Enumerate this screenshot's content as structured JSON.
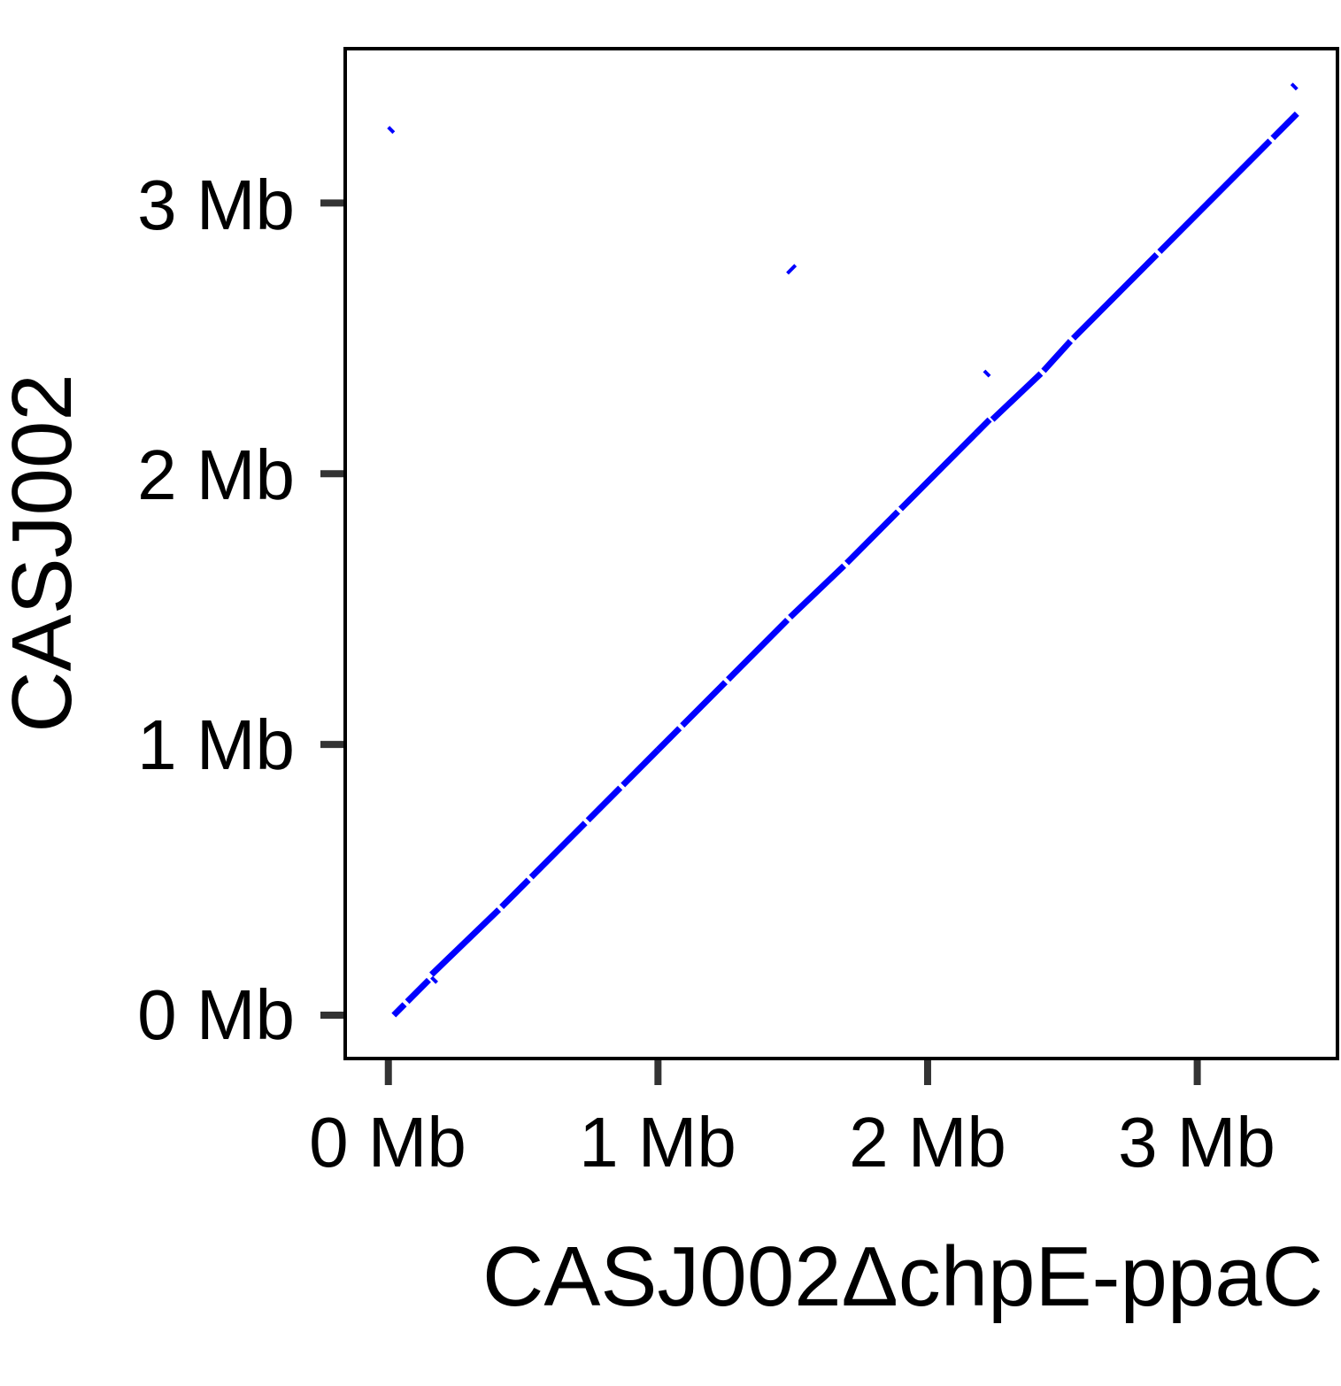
{
  "chart_data": {
    "type": "scatter",
    "subtype": "dot-plot",
    "xlabel": "CASJ002ΔchpE-ppaC",
    "ylabel": "CASJ002",
    "xlim": [
      -0.16,
      3.52
    ],
    "ylim": [
      -0.16,
      3.57
    ],
    "x_ticks": [
      {
        "value": 0,
        "label": "0 Mb"
      },
      {
        "value": 1,
        "label": "1 Mb"
      },
      {
        "value": 2,
        "label": "2 Mb"
      },
      {
        "value": 3,
        "label": "3 Mb"
      }
    ],
    "y_ticks": [
      {
        "value": 0,
        "label": "0 Mb"
      },
      {
        "value": 1,
        "label": "1 Mb"
      },
      {
        "value": 2,
        "label": "2 Mb"
      },
      {
        "value": 3,
        "label": "3 Mb"
      }
    ],
    "grid": false,
    "line_color": "#0000ff",
    "segments": [
      {
        "x1": 0.02,
        "y1": 0.0,
        "x2": 0.06,
        "y2": 0.04
      },
      {
        "x1": 0.07,
        "y1": 0.05,
        "x2": 0.15,
        "y2": 0.13
      },
      {
        "x1": 0.16,
        "y1": 0.15,
        "x2": 0.41,
        "y2": 0.39
      },
      {
        "x1": 0.42,
        "y1": 0.4,
        "x2": 0.52,
        "y2": 0.5
      },
      {
        "x1": 0.53,
        "y1": 0.51,
        "x2": 0.73,
        "y2": 0.71
      },
      {
        "x1": 0.74,
        "y1": 0.72,
        "x2": 0.86,
        "y2": 0.84
      },
      {
        "x1": 0.87,
        "y1": 0.85,
        "x2": 1.0,
        "y2": 0.98
      },
      {
        "x1": 1.0,
        "y1": 0.98,
        "x2": 1.08,
        "y2": 1.06
      },
      {
        "x1": 1.09,
        "y1": 1.07,
        "x2": 1.25,
        "y2": 1.23
      },
      {
        "x1": 1.26,
        "y1": 1.24,
        "x2": 1.48,
        "y2": 1.46
      },
      {
        "x1": 1.49,
        "y1": 1.47,
        "x2": 1.69,
        "y2": 1.66
      },
      {
        "x1": 1.7,
        "y1": 1.67,
        "x2": 1.89,
        "y2": 1.86
      },
      {
        "x1": 1.9,
        "y1": 1.87,
        "x2": 2.18,
        "y2": 2.15
      },
      {
        "x1": 2.18,
        "y1": 2.15,
        "x2": 2.23,
        "y2": 2.2
      },
      {
        "x1": 2.24,
        "y1": 2.2,
        "x2": 2.42,
        "y2": 2.37
      },
      {
        "x1": 2.43,
        "y1": 2.38,
        "x2": 2.53,
        "y2": 2.49
      },
      {
        "x1": 2.54,
        "y1": 2.5,
        "x2": 2.85,
        "y2": 2.81
      },
      {
        "x1": 2.86,
        "y1": 2.82,
        "x2": 3.27,
        "y2": 3.23
      },
      {
        "x1": 3.28,
        "y1": 3.24,
        "x2": 3.37,
        "y2": 3.33
      }
    ],
    "minor_segments": [
      {
        "x1": 0.0,
        "y1": 3.28,
        "x2": 0.02,
        "y2": 3.26
      },
      {
        "x1": 1.48,
        "y1": 2.74,
        "x2": 1.51,
        "y2": 2.77
      },
      {
        "x1": 2.21,
        "y1": 2.38,
        "x2": 2.23,
        "y2": 2.36
      },
      {
        "x1": 0.16,
        "y1": 0.14,
        "x2": 0.18,
        "y2": 0.12
      },
      {
        "x1": 3.35,
        "y1": 3.44,
        "x2": 3.37,
        "y2": 3.42
      }
    ]
  }
}
